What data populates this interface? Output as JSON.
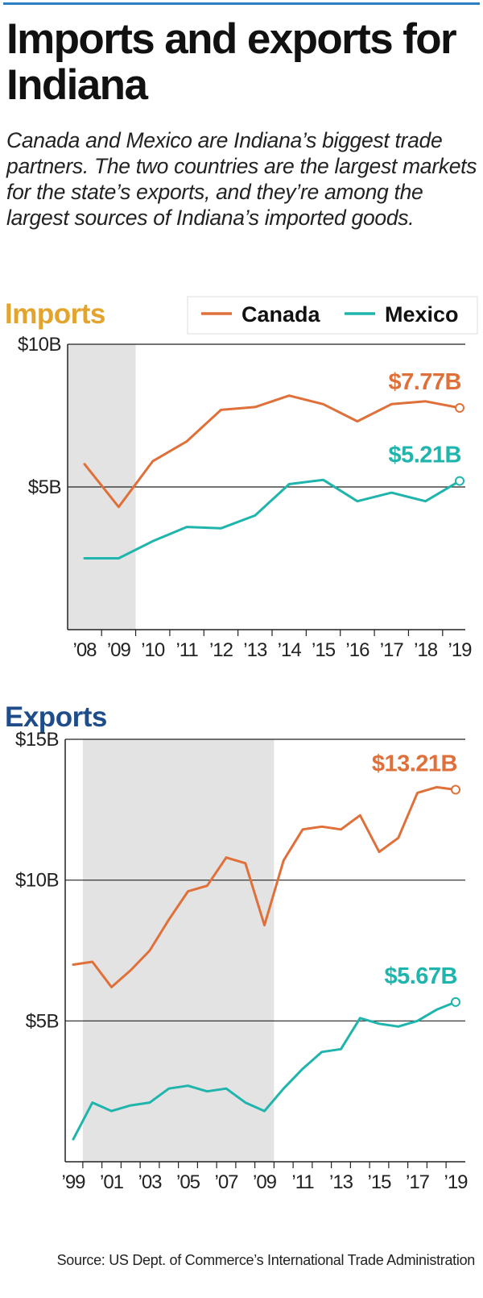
{
  "title": "Imports and exports for Indiana",
  "subtitle": "Canada and Mexico are Indiana’s biggest trade partners. The two countries are the largest markets for the state’s exports, and they’re among the largest sources of Indiana’s imported goods.",
  "source": "Source: US Dept. of Commerce’s International Trade Administration",
  "colors": {
    "canada": "#e0703a",
    "mexico": "#1fb5ad",
    "shade": "#e3e3e3",
    "imports_title": "#e3a42d",
    "exports_title": "#1e4d8a"
  },
  "legend": [
    {
      "label": "Canada",
      "color": "#e0703a"
    },
    {
      "label": "Mexico",
      "color": "#1fb5ad"
    }
  ],
  "chart_data": [
    {
      "type": "line",
      "title": "Imports",
      "x": [
        2008,
        2009,
        2010,
        2011,
        2012,
        2013,
        2014,
        2015,
        2016,
        2017,
        2018,
        2019
      ],
      "xtick_labels": [
        "’08",
        "’09",
        "’10",
        "’11",
        "’12",
        "’13",
        "’14",
        "’15",
        "’16",
        "’17",
        "’18",
        "’19"
      ],
      "ylim": [
        0,
        10
      ],
      "ytick_labels": [
        {
          "value": 10,
          "label": "$10B"
        },
        {
          "value": 5,
          "label": "$5B"
        }
      ],
      "gridlines": [
        10,
        5
      ],
      "shaded_range": [
        2007.5,
        2009.5
      ],
      "legend_position": "top-right",
      "series": [
        {
          "name": "Canada",
          "color": "#e0703a",
          "values": [
            5.8,
            4.3,
            5.9,
            6.6,
            7.7,
            7.8,
            8.2,
            7.9,
            7.3,
            7.9,
            8.0,
            7.77
          ],
          "end_label": "$7.77B"
        },
        {
          "name": "Mexico",
          "color": "#1fb5ad",
          "values": [
            2.5,
            2.5,
            3.1,
            3.6,
            3.55,
            4.0,
            5.1,
            5.25,
            4.5,
            4.8,
            4.5,
            5.21
          ],
          "end_label": "$5.21B"
        }
      ]
    },
    {
      "type": "line",
      "title": "Exports",
      "x": [
        1999,
        2000,
        2001,
        2002,
        2003,
        2004,
        2005,
        2006,
        2007,
        2008,
        2009,
        2010,
        2011,
        2012,
        2013,
        2014,
        2015,
        2016,
        2017,
        2018,
        2019
      ],
      "xtick_labels": [
        "’99",
        "",
        "’01",
        "",
        "’03",
        "",
        "’05",
        "",
        "’07",
        "",
        "’09",
        "",
        "’11",
        "",
        "’13",
        "",
        "’15",
        "",
        "’17",
        "",
        "’19"
      ],
      "ylim": [
        0,
        15
      ],
      "ytick_labels": [
        {
          "value": 15,
          "label": "$15B"
        },
        {
          "value": 10,
          "label": "$10B"
        },
        {
          "value": 5,
          "label": "$5B"
        }
      ],
      "gridlines": [
        15,
        10,
        5
      ],
      "shaded_range": [
        1999.5,
        2009.5
      ],
      "series": [
        {
          "name": "Canada",
          "color": "#e0703a",
          "values": [
            7.0,
            7.1,
            6.2,
            6.8,
            7.5,
            8.6,
            9.6,
            9.8,
            10.8,
            10.6,
            8.4,
            10.7,
            11.8,
            11.9,
            11.8,
            12.3,
            11.0,
            11.5,
            13.1,
            13.3,
            13.21
          ],
          "end_label": "$13.21B"
        },
        {
          "name": "Mexico",
          "color": "#1fb5ad",
          "values": [
            0.8,
            2.1,
            1.8,
            2.0,
            2.1,
            2.6,
            2.7,
            2.5,
            2.6,
            2.1,
            1.8,
            2.6,
            3.3,
            3.9,
            4.0,
            5.1,
            4.9,
            4.8,
            5.0,
            5.4,
            5.67
          ],
          "end_label": "$5.67B"
        }
      ]
    }
  ]
}
